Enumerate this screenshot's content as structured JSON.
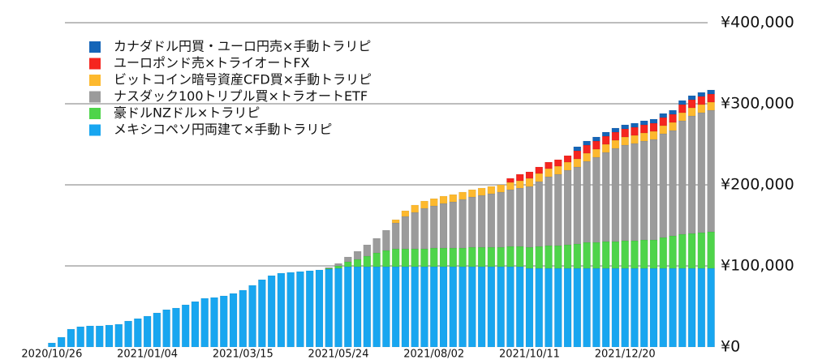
{
  "chart_data": {
    "type": "stacked_bar",
    "categories": [
      "2020/10/26",
      null,
      null,
      null,
      null,
      null,
      null,
      null,
      null,
      null,
      "2021/01/04",
      null,
      null,
      null,
      null,
      null,
      null,
      null,
      null,
      null,
      "2021/03/15",
      null,
      null,
      null,
      null,
      null,
      null,
      null,
      null,
      null,
      "2021/05/24",
      null,
      null,
      null,
      null,
      null,
      null,
      null,
      null,
      null,
      "2021/08/02",
      null,
      null,
      null,
      null,
      null,
      null,
      null,
      null,
      null,
      "2021/10/11",
      null,
      null,
      null,
      null,
      null,
      null,
      null,
      null,
      null,
      "2021/12/20",
      null,
      null,
      null,
      null,
      null,
      null,
      null,
      null,
      null
    ],
    "series": [
      {
        "name": "メキシコペソ円両建て×手動トラリピ",
        "color": "#18a6f0",
        "values": [
          5000,
          12000,
          22000,
          25000,
          26000,
          26000,
          27000,
          28000,
          32000,
          35000,
          38000,
          42000,
          46000,
          48000,
          52000,
          56000,
          60000,
          61000,
          63000,
          66000,
          70000,
          76000,
          83000,
          88000,
          91000,
          92000,
          93000,
          94000,
          95000,
          96000,
          97000,
          99000,
          99000,
          99000,
          99000,
          99000,
          99000,
          99000,
          99000,
          99000,
          99000,
          99000,
          99000,
          99000,
          99000,
          99000,
          99000,
          99000,
          99000,
          99000,
          97000,
          97000,
          97000,
          97000,
          97000,
          97000,
          97000,
          97000,
          97000,
          97000,
          97000,
          97000,
          97000,
          97000,
          97000,
          97000,
          97000,
          97000,
          97000,
          97000
        ]
      },
      {
        "name": "豪ドルNZドル×トラリピ",
        "color": "#4ed44a",
        "values": [
          0,
          0,
          0,
          0,
          0,
          0,
          0,
          0,
          0,
          0,
          0,
          0,
          0,
          0,
          0,
          0,
          0,
          0,
          0,
          0,
          0,
          0,
          0,
          0,
          0,
          0,
          0,
          0,
          0,
          1000,
          3000,
          6000,
          9000,
          13000,
          17000,
          20000,
          22000,
          22000,
          22000,
          22000,
          23000,
          23000,
          23000,
          23000,
          24000,
          24000,
          24000,
          24000,
          25000,
          25000,
          26000,
          27000,
          28000,
          28000,
          29000,
          30000,
          32000,
          32000,
          33000,
          33000,
          34000,
          34000,
          35000,
          35000,
          38000,
          40000,
          42000,
          43000,
          44000,
          45000
        ]
      },
      {
        "name": "ナスダック100トリプル買×トラオートETF",
        "color": "#9b9b9b",
        "values": [
          0,
          0,
          0,
          0,
          0,
          0,
          0,
          0,
          0,
          0,
          0,
          0,
          0,
          0,
          0,
          0,
          0,
          0,
          0,
          0,
          0,
          0,
          0,
          0,
          0,
          0,
          0,
          0,
          0,
          1000,
          3000,
          6000,
          10000,
          14000,
          18000,
          25000,
          32000,
          40000,
          45000,
          50000,
          52000,
          55000,
          57000,
          60000,
          62000,
          64000,
          66000,
          68000,
          70000,
          72000,
          75000,
          80000,
          85000,
          88000,
          92000,
          95000,
          100000,
          105000,
          110000,
          115000,
          118000,
          120000,
          122000,
          124000,
          128000,
          130000,
          140000,
          145000,
          148000,
          150000
        ]
      },
      {
        "name": "ビットコイン暗号資産CFD買×手動トラリピ",
        "color": "#fdb92e",
        "values": [
          0,
          0,
          0,
          0,
          0,
          0,
          0,
          0,
          0,
          0,
          0,
          0,
          0,
          0,
          0,
          0,
          0,
          0,
          0,
          0,
          0,
          0,
          0,
          0,
          0,
          0,
          0,
          0,
          0,
          0,
          0,
          0,
          0,
          0,
          0,
          0,
          4000,
          7000,
          9000,
          9000,
          9000,
          9000,
          9000,
          9000,
          9000,
          9000,
          9000,
          9000,
          9000,
          9000,
          10000,
          10000,
          10000,
          10000,
          10000,
          10000,
          10000,
          10000,
          10000,
          10000,
          10000,
          10000,
          10000,
          10000,
          10000,
          10000,
          10000,
          10000,
          10000,
          10000
        ]
      },
      {
        "name": "ユーロポンド売×トライオートFX",
        "color": "#f5251f",
        "values": [
          0,
          0,
          0,
          0,
          0,
          0,
          0,
          0,
          0,
          0,
          0,
          0,
          0,
          0,
          0,
          0,
          0,
          0,
          0,
          0,
          0,
          0,
          0,
          0,
          0,
          0,
          0,
          0,
          0,
          0,
          0,
          0,
          0,
          0,
          0,
          0,
          0,
          0,
          0,
          0,
          0,
          0,
          0,
          0,
          0,
          0,
          0,
          0,
          5000,
          8000,
          8000,
          8000,
          8000,
          8000,
          8000,
          10000,
          10000,
          10000,
          10000,
          10000,
          10000,
          10000,
          10000,
          10000,
          10000,
          10000,
          10000,
          10000,
          10000,
          10000
        ]
      },
      {
        "name": "カナダドル円買・ユーロ円売×手動トラリピ",
        "color": "#1565b8",
        "values": [
          0,
          0,
          0,
          0,
          0,
          0,
          0,
          0,
          0,
          0,
          0,
          0,
          0,
          0,
          0,
          0,
          0,
          0,
          0,
          0,
          0,
          0,
          0,
          0,
          0,
          0,
          0,
          0,
          0,
          0,
          0,
          0,
          0,
          0,
          0,
          0,
          0,
          0,
          0,
          0,
          0,
          0,
          0,
          0,
          0,
          0,
          0,
          0,
          0,
          0,
          0,
          0,
          0,
          0,
          0,
          5000,
          5000,
          5000,
          5000,
          5000,
          5000,
          5000,
          5000,
          5000,
          5000,
          5000,
          5000,
          5000,
          5000,
          5000
        ]
      }
    ],
    "ylim": [
      0,
      400000
    ],
    "yticks": [
      {
        "value": 0,
        "label": "¥0"
      },
      {
        "value": 100000,
        "label": "¥100,000"
      },
      {
        "value": 200000,
        "label": "¥200,000"
      },
      {
        "value": 300000,
        "label": "¥300,000"
      },
      {
        "value": 400000,
        "label": "¥400,000"
      }
    ],
    "grid": true,
    "legend": "upper-left"
  }
}
